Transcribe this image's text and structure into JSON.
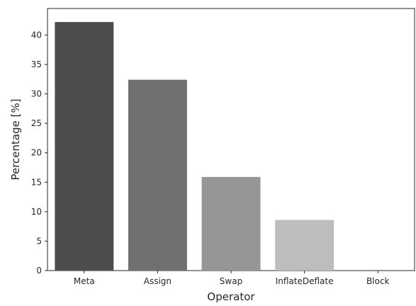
{
  "chart_data": {
    "type": "bar",
    "title": "",
    "xlabel": "Operator",
    "ylabel": "Percentage [%]",
    "categories": [
      "Meta",
      "Assign",
      "Swap",
      "InflateDeflate",
      "Block"
    ],
    "values": [
      42.2,
      32.4,
      15.9,
      8.6,
      0.0
    ],
    "bar_colors": [
      "#4d4d4d",
      "#707070",
      "#969696",
      "#bdbdbd",
      "#d9d9d9"
    ],
    "ylim": [
      0,
      44.5
    ],
    "yticks": [
      0,
      5,
      10,
      15,
      20,
      25,
      30,
      35,
      40
    ],
    "grid": false,
    "legend": "none"
  }
}
